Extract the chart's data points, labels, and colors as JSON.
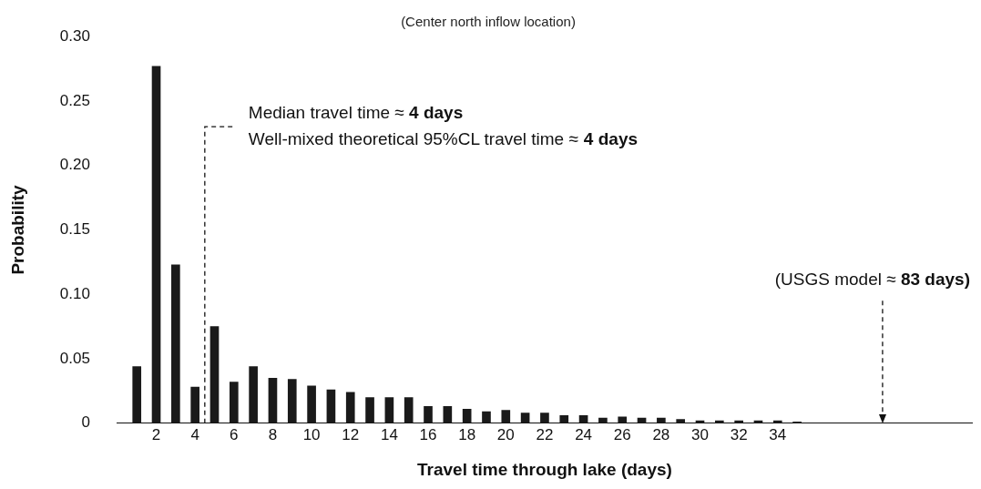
{
  "chart_data": {
    "type": "bar",
    "title": "(Center north inflow location)",
    "xlabel": "Travel time through lake (days)",
    "ylabel": "Probability",
    "x": [
      1,
      2,
      3,
      4,
      5,
      6,
      7,
      8,
      9,
      10,
      11,
      12,
      13,
      14,
      15,
      16,
      17,
      18,
      19,
      20,
      21,
      22,
      23,
      24,
      25,
      26,
      27,
      28,
      29,
      30,
      31,
      32,
      33,
      34,
      35
    ],
    "values": [
      0.044,
      0.277,
      0.123,
      0.028,
      0.075,
      0.032,
      0.044,
      0.035,
      0.034,
      0.029,
      0.026,
      0.024,
      0.02,
      0.02,
      0.02,
      0.013,
      0.013,
      0.011,
      0.009,
      0.01,
      0.008,
      0.008,
      0.006,
      0.006,
      0.004,
      0.005,
      0.004,
      0.004,
      0.003,
      0.002,
      0.002,
      0.002,
      0.002,
      0.002,
      0.001
    ],
    "color": "#1a1a1a",
    "xlim": [
      0,
      44
    ],
    "xticks": [
      2,
      4,
      6,
      8,
      10,
      12,
      14,
      16,
      18,
      20,
      22,
      24,
      26,
      28,
      30,
      32,
      34
    ],
    "ylim": [
      0,
      0.3
    ],
    "yticks": [
      0,
      0.05,
      {
        "value": 0.1,
        "label": "0.10"
      },
      0.15,
      {
        "value": 0.2,
        "label": "0.20"
      },
      0.25,
      {
        "value": 0.3,
        "label": "0.30"
      }
    ],
    "grid": false,
    "legend": false,
    "ref_lines": [
      {
        "axis": "x",
        "value": 4.5,
        "label": "Median travel time ≈ 4 days\nWell-mixed theoretical 95%CL travel time ≈ 4 days",
        "line_style": "dashed"
      },
      {
        "axis": "x",
        "value": 39.4,
        "label": "(USGS model ≈ 83 days)",
        "line_style": "dashed"
      }
    ]
  }
}
